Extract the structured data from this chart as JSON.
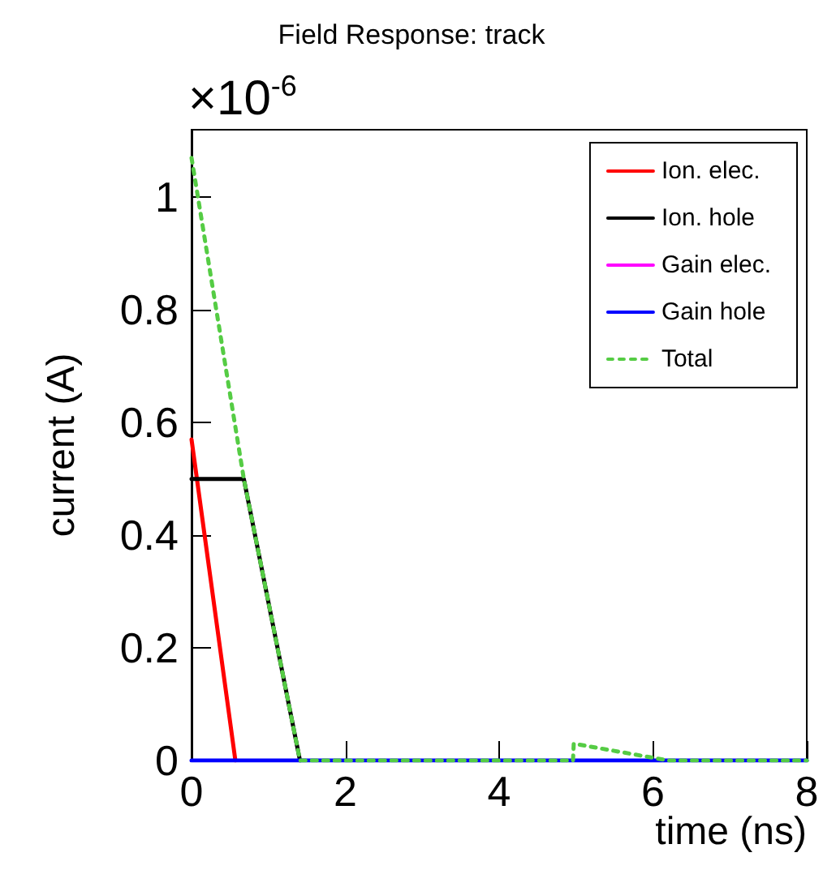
{
  "chart_data": {
    "type": "line",
    "title": "Field Response: track",
    "xlabel": "time (ns)",
    "ylabel": "current (A)",
    "annotations": [
      "×10$^{-6}$"
    ],
    "xlim": [
      0,
      8
    ],
    "xticks": [
      0,
      2,
      4,
      6,
      8
    ],
    "ylim": [
      0,
      1.12
    ],
    "yticks": [
      0,
      0.2,
      0.4,
      0.6,
      0.8,
      1
    ],
    "grid": false,
    "legend": "top right",
    "marker": "none",
    "line_style": "solid",
    "series": [
      {
        "name": "Ion. elec.",
        "color": "#ff0000",
        "x": [
          0,
          0.57
        ],
        "values": [
          0.57,
          0
        ]
      },
      {
        "name": "Ion. hole",
        "color": "#000000",
        "x": [
          0,
          0.68,
          1.41
        ],
        "values": [
          0.5,
          0.5,
          0
        ]
      },
      {
        "name": "Gain elec.",
        "color": "#ff00ff"
      },
      {
        "name": "Gain hole",
        "color": "#0000ff",
        "x": [
          0,
          8
        ],
        "values": [
          0,
          0
        ]
      },
      {
        "name": "Total",
        "color": "#55cc44",
        "line_style": "dotted",
        "x": [
          0,
          0.68,
          1.41,
          4.96,
          4.97,
          6.2,
          8
        ],
        "values": [
          1.07,
          0.5,
          0,
          0,
          0.03,
          0,
          0
        ]
      }
    ]
  }
}
